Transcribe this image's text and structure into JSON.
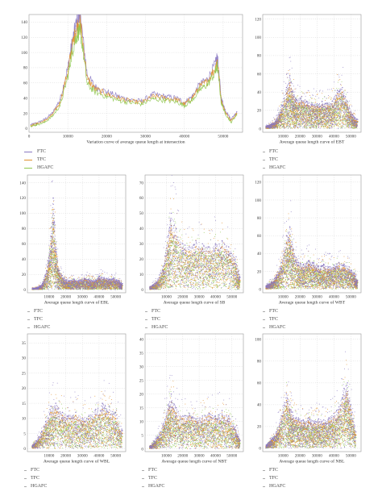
{
  "colors": {
    "FTC": "#8a78c2",
    "TFC": "#e0902e",
    "HGAFC": "#8fc850"
  },
  "legend_labels": [
    "FTC",
    "TFC",
    "HGAFC"
  ],
  "chart_data": [
    {
      "id": "main",
      "type": "line",
      "title": "Variation curve of average queue length at intersection",
      "xlim": [
        0,
        55000
      ],
      "ylim": [
        -5,
        150
      ],
      "xticks": [
        0,
        10000,
        20000,
        30000,
        40000,
        50000
      ],
      "yticks": [
        0,
        20,
        40,
        60,
        80,
        100,
        120,
        140
      ],
      "x": [
        500,
        2000,
        4000,
        6000,
        8000,
        10000,
        11000,
        12000,
        13000,
        13500,
        15000,
        17000,
        20000,
        23000,
        26000,
        29000,
        32000,
        35000,
        38000,
        40000,
        42000,
        44000,
        46000,
        48000,
        48500,
        49500,
        50500,
        52000,
        53500
      ],
      "series": [
        {
          "name": "FTC",
          "values": [
            5,
            7,
            12,
            20,
            38,
            80,
            110,
            135,
            148,
            135,
            70,
            55,
            48,
            42,
            38,
            36,
            45,
            42,
            40,
            34,
            42,
            58,
            65,
            85,
            95,
            40,
            25,
            12,
            22
          ]
        },
        {
          "name": "TFC",
          "values": [
            4,
            6,
            10,
            18,
            34,
            75,
            105,
            128,
            140,
            128,
            65,
            52,
            45,
            40,
            36,
            34,
            42,
            40,
            38,
            32,
            40,
            55,
            62,
            80,
            90,
            37,
            22,
            10,
            20
          ]
        },
        {
          "name": "HGAFC",
          "values": [
            3,
            5,
            8,
            16,
            30,
            68,
            98,
            118,
            130,
            118,
            58,
            48,
            42,
            37,
            34,
            32,
            39,
            37,
            35,
            30,
            37,
            51,
            58,
            74,
            82,
            34,
            20,
            8,
            18
          ]
        }
      ]
    },
    {
      "id": "ebt",
      "type": "scatter",
      "title": "Average queue length curve of EBT",
      "xlim": [
        -2000,
        56000
      ],
      "ylim": [
        -4,
        125
      ],
      "xticks": [
        10000,
        20000,
        30000,
        40000,
        50000
      ],
      "yticks": [
        0,
        20,
        40,
        60,
        80,
        100,
        120
      ],
      "x": [
        0,
        3000,
        6000,
        9000,
        12000,
        14000,
        16000,
        18000,
        21000,
        24000,
        27000,
        30000,
        33000,
        36000,
        39000,
        42000,
        45000,
        48000,
        51000,
        54000
      ],
      "series": [
        {
          "name": "FTC",
          "values": [
            3,
            5,
            10,
            25,
            45,
            58,
            40,
            32,
            35,
            30,
            28,
            27,
            30,
            28,
            30,
            42,
            45,
            30,
            15,
            10
          ]
        },
        {
          "name": "TFC",
          "values": [
            2,
            4,
            8,
            20,
            38,
            50,
            35,
            28,
            30,
            26,
            25,
            24,
            26,
            25,
            27,
            38,
            40,
            26,
            12,
            8
          ]
        },
        {
          "name": "HGAFC",
          "values": [
            2,
            3,
            7,
            18,
            32,
            40,
            30,
            25,
            26,
            23,
            22,
            21,
            23,
            22,
            24,
            33,
            35,
            23,
            10,
            7
          ]
        }
      ]
    },
    {
      "id": "ebl",
      "type": "scatter",
      "title": "Average queue length curve of EBL",
      "xlim": [
        -3000,
        56000
      ],
      "ylim": [
        -4,
        150
      ],
      "xticks": [
        10000,
        20000,
        30000,
        40000,
        50000
      ],
      "yticks": [
        0,
        20,
        40,
        60,
        80,
        100,
        120,
        140
      ],
      "x": [
        0,
        3000,
        6000,
        9000,
        11000,
        12500,
        14000,
        16000,
        19000,
        22000,
        25000,
        28000,
        31000,
        34000,
        37000,
        40000,
        43000,
        46000,
        49000,
        52000,
        54000
      ],
      "series": [
        {
          "name": "FTC",
          "values": [
            2,
            3,
            8,
            30,
            70,
            120,
            60,
            25,
            15,
            12,
            14,
            12,
            15,
            14,
            12,
            18,
            16,
            14,
            15,
            12,
            8
          ]
        },
        {
          "name": "TFC",
          "values": [
            2,
            3,
            6,
            25,
            60,
            105,
            52,
            22,
            12,
            10,
            12,
            10,
            13,
            12,
            10,
            15,
            14,
            12,
            13,
            10,
            6
          ]
        },
        {
          "name": "HGAFC",
          "values": [
            1,
            2,
            5,
            20,
            50,
            85,
            45,
            18,
            10,
            8,
            10,
            8,
            11,
            10,
            9,
            13,
            12,
            10,
            11,
            8,
            5
          ]
        }
      ]
    },
    {
      "id": "sb",
      "type": "scatter",
      "title": "Average queue length curve of SB",
      "xlim": [
        -3000,
        57000
      ],
      "ylim": [
        -2,
        75
      ],
      "xticks": [
        10000,
        20000,
        30000,
        40000,
        50000
      ],
      "yticks": [
        0,
        10,
        20,
        30,
        40,
        50,
        60,
        70
      ],
      "x": [
        0,
        4000,
        8000,
        11000,
        13000,
        16000,
        20000,
        24000,
        28000,
        32000,
        36000,
        40000,
        44000,
        48000,
        52000,
        55000
      ],
      "series": [
        {
          "name": "FTC",
          "values": [
            2,
            5,
            15,
            35,
            50,
            40,
            30,
            28,
            32,
            30,
            28,
            30,
            32,
            28,
            20,
            8
          ]
        },
        {
          "name": "TFC",
          "values": [
            2,
            4,
            13,
            30,
            42,
            35,
            27,
            25,
            28,
            27,
            25,
            27,
            28,
            25,
            17,
            6
          ]
        },
        {
          "name": "HGAFC",
          "values": [
            1,
            3,
            11,
            26,
            36,
            31,
            24,
            22,
            25,
            24,
            22,
            24,
            25,
            22,
            15,
            5
          ]
        }
      ]
    },
    {
      "id": "wbt",
      "type": "scatter",
      "title": "Average queue length curve of WBT",
      "xlim": [
        -2000,
        56000
      ],
      "ylim": [
        -4,
        128
      ],
      "xticks": [
        10000,
        20000,
        30000,
        40000,
        50000
      ],
      "yticks": [
        0,
        20,
        40,
        60,
        80,
        100,
        120
      ],
      "x": [
        0,
        3000,
        6000,
        9000,
        12000,
        14000,
        16000,
        19000,
        22000,
        25000,
        28000,
        31000,
        34000,
        37000,
        40000,
        43000,
        46000,
        49000,
        52000,
        54000
      ],
      "series": [
        {
          "name": "FTC",
          "values": [
            4,
            8,
            15,
            30,
            60,
            70,
            45,
            30,
            28,
            32,
            30,
            26,
            28,
            25,
            27,
            30,
            28,
            25,
            18,
            10
          ]
        },
        {
          "name": "TFC",
          "values": [
            3,
            7,
            12,
            26,
            52,
            60,
            40,
            26,
            24,
            28,
            26,
            22,
            24,
            22,
            24,
            26,
            24,
            22,
            15,
            8
          ]
        },
        {
          "name": "HGAFC",
          "values": [
            3,
            6,
            10,
            22,
            45,
            50,
            34,
            22,
            21,
            24,
            22,
            19,
            21,
            19,
            21,
            23,
            21,
            19,
            13,
            7
          ]
        }
      ]
    },
    {
      "id": "wbl",
      "type": "scatter",
      "title": "Average queue length curve of WBL",
      "xlim": [
        -3000,
        56000
      ],
      "ylim": [
        -1,
        38
      ],
      "xticks": [
        10000,
        20000,
        30000,
        40000,
        50000
      ],
      "yticks": [
        0,
        5,
        10,
        15,
        20,
        25,
        30,
        35
      ],
      "x": [
        0,
        4000,
        8000,
        11000,
        14000,
        18000,
        22000,
        26000,
        30000,
        34000,
        38000,
        42000,
        46000,
        50000,
        54000
      ],
      "series": [
        {
          "name": "FTC",
          "values": [
            1,
            4,
            9,
            14,
            15,
            12,
            11,
            12,
            10,
            11,
            13,
            15,
            14,
            12,
            6
          ]
        },
        {
          "name": "TFC",
          "values": [
            1,
            3,
            8,
            12,
            13,
            11,
            10,
            11,
            9,
            10,
            11,
            13,
            12,
            10,
            5
          ]
        },
        {
          "name": "HGAFC",
          "values": [
            1,
            3,
            7,
            10,
            11,
            9,
            8,
            9,
            8,
            9,
            10,
            11,
            10,
            9,
            4
          ]
        }
      ]
    },
    {
      "id": "nbt",
      "type": "scatter",
      "title": "Average queue length curve of NBT",
      "xlim": [
        -3000,
        57000
      ],
      "ylim": [
        -1,
        42
      ],
      "xticks": [
        10000,
        20000,
        30000,
        40000,
        50000
      ],
      "yticks": [
        0,
        5,
        10,
        15,
        20,
        25,
        30,
        35,
        40
      ],
      "x": [
        0,
        4000,
        8000,
        11000,
        13000,
        16000,
        20000,
        24000,
        28000,
        32000,
        36000,
        40000,
        44000,
        48000,
        52000,
        55000
      ],
      "series": [
        {
          "name": "FTC",
          "values": [
            1,
            4,
            9,
            16,
            20,
            15,
            12,
            13,
            11,
            12,
            13,
            12,
            14,
            12,
            8,
            3
          ]
        },
        {
          "name": "TFC",
          "values": [
            1,
            3,
            8,
            14,
            17,
            13,
            11,
            12,
            10,
            11,
            12,
            11,
            12,
            11,
            7,
            3
          ]
        },
        {
          "name": "HGAFC",
          "values": [
            1,
            3,
            7,
            12,
            14,
            11,
            9,
            10,
            9,
            9,
            10,
            9,
            10,
            9,
            6,
            2
          ]
        }
      ]
    },
    {
      "id": "nbl",
      "type": "scatter",
      "title": "Average queue length curve of NBL",
      "xlim": [
        -2000,
        56000
      ],
      "ylim": [
        -3,
        105
      ],
      "xticks": [
        10000,
        20000,
        30000,
        40000,
        50000
      ],
      "yticks": [
        0,
        20,
        40,
        60,
        80,
        100
      ],
      "x": [
        0,
        3000,
        6000,
        9000,
        12000,
        14000,
        16000,
        19000,
        22000,
        25000,
        28000,
        31000,
        34000,
        37000,
        40000,
        43000,
        46000,
        48000,
        50000,
        53000
      ],
      "series": [
        {
          "name": "FTC",
          "values": [
            3,
            8,
            15,
            30,
            50,
            40,
            30,
            28,
            26,
            28,
            25,
            27,
            26,
            28,
            32,
            38,
            55,
            60,
            40,
            15
          ]
        },
        {
          "name": "TFC",
          "values": [
            2,
            7,
            13,
            26,
            44,
            35,
            27,
            25,
            23,
            25,
            22,
            24,
            23,
            25,
            28,
            34,
            48,
            52,
            35,
            12
          ]
        },
        {
          "name": "HGAFC",
          "values": [
            2,
            6,
            11,
            22,
            38,
            30,
            23,
            21,
            20,
            21,
            19,
            21,
            20,
            21,
            24,
            29,
            41,
            45,
            30,
            10
          ]
        }
      ]
    }
  ]
}
